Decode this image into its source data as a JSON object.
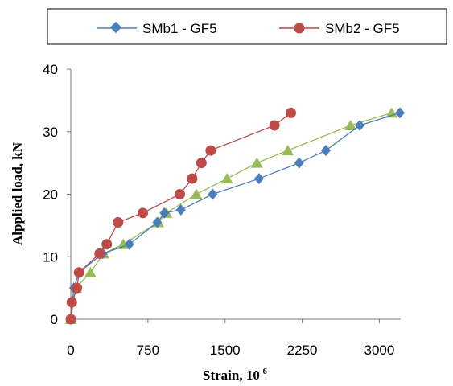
{
  "chart_data": {
    "type": "line",
    "title": "",
    "xlabel": "Strain, 10",
    "xlabel_sup": "-6",
    "ylabel": "Alpplied load, kN",
    "xlim": [
      0,
      3200
    ],
    "ylim": [
      0,
      40
    ],
    "xticks": [
      "0",
      "750",
      "1500",
      "2250",
      "3000"
    ],
    "yticks": [
      "0",
      "10",
      "20",
      "30",
      "40"
    ],
    "grid": false,
    "legend_position": "top",
    "series": [
      {
        "name": "SMb1 - GF5",
        "color": "#4a7ebb",
        "marker": "diamond",
        "x": [
          0,
          30,
          80,
          310,
          570,
          840,
          910,
          1070,
          1380,
          1830,
          2220,
          2480,
          2810,
          3200
        ],
        "y": [
          0,
          5,
          7.5,
          10.5,
          12,
          15.5,
          17,
          17.5,
          20,
          22.5,
          25,
          27,
          31,
          33
        ]
      },
      {
        "name": "SMb2 - GF5",
        "color": "#be4b48",
        "marker": "circle",
        "x": [
          0,
          10,
          60,
          80,
          280,
          350,
          460,
          700,
          1060,
          1180,
          1270,
          1360,
          1980,
          2140
        ],
        "y": [
          0,
          2.7,
          5,
          7.5,
          10.5,
          12,
          15.5,
          17,
          20,
          22.5,
          25,
          27,
          31,
          33
        ]
      },
      {
        "name": "",
        "color": "#9bbb59",
        "marker": "triangle",
        "x": [
          0,
          50,
          190,
          320,
          510,
          850,
          930,
          1220,
          1520,
          1810,
          2110,
          2720,
          3120
        ],
        "y": [
          0,
          5,
          7.5,
          10.5,
          12,
          15.5,
          17,
          20,
          22.5,
          25,
          27,
          31,
          33
        ]
      }
    ]
  }
}
